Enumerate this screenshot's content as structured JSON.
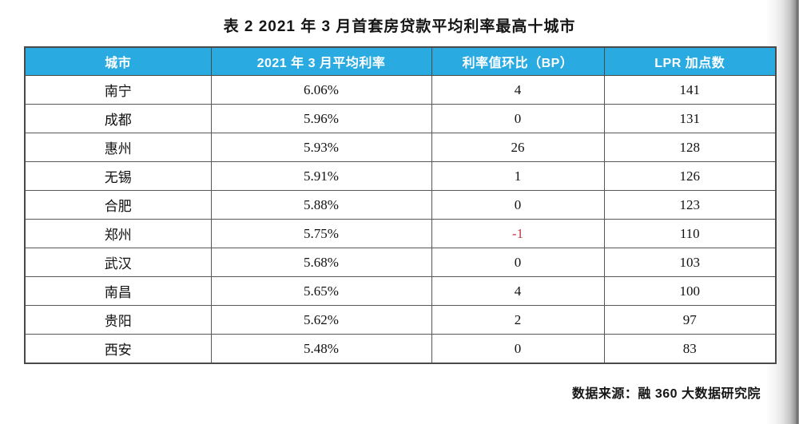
{
  "colors": {
    "header_bg": "#29abe2",
    "header_text": "#ffffff",
    "negative_red": "#c43b44",
    "border": "#4a4a4a",
    "text": "#151515"
  },
  "chart_data": {
    "type": "table",
    "title": "表 2 2021 年 3 月首套房贷款平均利率最高十城市",
    "columns": [
      "城市",
      "2021 年 3 月平均利率",
      "利率值环比（BP）",
      "LPR 加点数"
    ],
    "rows": [
      {
        "city": "南宁",
        "avg_rate": "6.06%",
        "bp_change": "4",
        "lpr_points": "141",
        "bp_change_negative": false
      },
      {
        "city": "成都",
        "avg_rate": "5.96%",
        "bp_change": "0",
        "lpr_points": "131",
        "bp_change_negative": false
      },
      {
        "city": "惠州",
        "avg_rate": "5.93%",
        "bp_change": "26",
        "lpr_points": "128",
        "bp_change_negative": false
      },
      {
        "city": "无锡",
        "avg_rate": "5.91%",
        "bp_change": "1",
        "lpr_points": "126",
        "bp_change_negative": false
      },
      {
        "city": "合肥",
        "avg_rate": "5.88%",
        "bp_change": "0",
        "lpr_points": "123",
        "bp_change_negative": false
      },
      {
        "city": "郑州",
        "avg_rate": "5.75%",
        "bp_change": "-1",
        "lpr_points": "110",
        "bp_change_negative": true
      },
      {
        "city": "武汉",
        "avg_rate": "5.68%",
        "bp_change": "0",
        "lpr_points": "103",
        "bp_change_negative": false
      },
      {
        "city": "南昌",
        "avg_rate": "5.65%",
        "bp_change": "4",
        "lpr_points": "100",
        "bp_change_negative": false
      },
      {
        "city": "贵阳",
        "avg_rate": "5.62%",
        "bp_change": "2",
        "lpr_points": "97",
        "bp_change_negative": false
      },
      {
        "city": "西安",
        "avg_rate": "5.48%",
        "bp_change": "0",
        "lpr_points": "83",
        "bp_change_negative": false
      }
    ],
    "source_note": "数据来源：融 360 大数据研究院"
  }
}
